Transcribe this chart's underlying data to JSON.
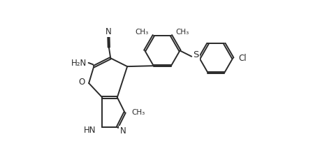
{
  "background": "#ffffff",
  "line_color": "#2a2a2a",
  "line_width": 1.4,
  "dbo": 0.055,
  "font_size": 8.5,
  "fig_width": 4.48,
  "fig_height": 2.19,
  "xlim": [
    -1.0,
    10.5
  ],
  "ylim": [
    -0.3,
    8.8
  ]
}
